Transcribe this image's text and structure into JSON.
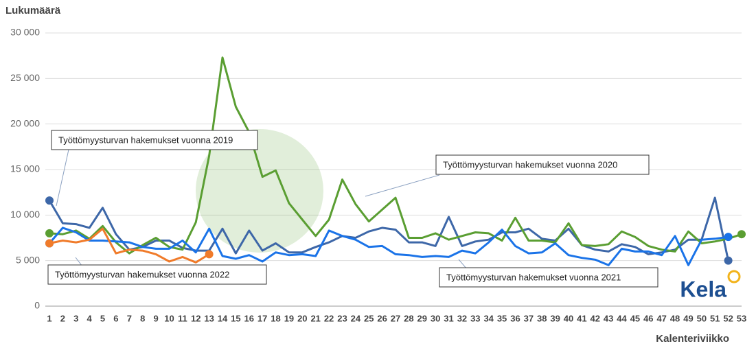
{
  "chart_data": {
    "type": "line",
    "y_label": "Lukumäärä",
    "x_label": "Kalenteriviikko",
    "x": [
      1,
      2,
      3,
      4,
      5,
      6,
      7,
      8,
      9,
      10,
      11,
      12,
      13,
      14,
      15,
      16,
      17,
      18,
      19,
      20,
      21,
      22,
      23,
      24,
      25,
      26,
      27,
      28,
      29,
      30,
      31,
      32,
      33,
      34,
      35,
      36,
      37,
      38,
      39,
      40,
      41,
      42,
      43,
      44,
      45,
      46,
      47,
      48,
      49,
      50,
      51,
      52,
      53
    ],
    "xlim": [
      1,
      53
    ],
    "ylim": [
      0,
      30000
    ],
    "yticks": [
      {
        "value": 0,
        "label": "0"
      },
      {
        "value": 5000,
        "label": "5 000"
      },
      {
        "value": 10000,
        "label": "10 000"
      },
      {
        "value": 15000,
        "label": "15 000"
      },
      {
        "value": 20000,
        "label": "20 000"
      },
      {
        "value": 25000,
        "label": "25 000"
      },
      {
        "value": 30000,
        "label": "30 000"
      }
    ],
    "grid": true,
    "series": [
      {
        "name": "Työttömyysturvan hakemukset vuonna 2019",
        "color": "#3d67a8",
        "values": [
          11600,
          9100,
          9000,
          8600,
          10800,
          7900,
          6200,
          6500,
          7200,
          7200,
          6400,
          6100,
          6100,
          8500,
          5800,
          8300,
          6100,
          6900,
          5900,
          5900,
          6500,
          7000,
          7700,
          7500,
          8200,
          8600,
          8400,
          7000,
          7000,
          6600,
          9800,
          6600,
          7100,
          7300,
          8100,
          8100,
          8500,
          7400,
          7200,
          8500,
          6700,
          6200,
          6000,
          6800,
          6500,
          5700,
          5900,
          6200,
          7300,
          7300,
          11900,
          5000,
          null
        ]
      },
      {
        "name": "Työttömyysturvan hakemukset vuonna 2020",
        "color": "#5a9e32",
        "values": [
          8000,
          7900,
          8300,
          7400,
          8800,
          7000,
          5800,
          6700,
          7500,
          6500,
          6200,
          9200,
          16500,
          27300,
          21900,
          19100,
          14200,
          14900,
          11300,
          9500,
          7700,
          9500,
          13900,
          11200,
          9300,
          10600,
          11900,
          7500,
          7500,
          8000,
          7300,
          7700,
          8100,
          8000,
          7200,
          9700,
          7200,
          7200,
          7000,
          9100,
          6700,
          6600,
          6800,
          8200,
          7600,
          6600,
          6200,
          6000,
          8200,
          6900,
          7100,
          7400,
          7900
        ]
      },
      {
        "name": "Työttömyysturvan hakemukset vuonna 2021",
        "color": "#1a73e8",
        "values": [
          6900,
          8600,
          8100,
          7200,
          7200,
          7100,
          7000,
          6500,
          6300,
          6300,
          7200,
          5900,
          8500,
          5500,
          5200,
          5600,
          4900,
          5900,
          5600,
          5700,
          5500,
          8300,
          7700,
          7300,
          6500,
          6600,
          5700,
          5600,
          5400,
          5500,
          5400,
          6100,
          5800,
          7000,
          8400,
          6600,
          5800,
          5900,
          6900,
          5600,
          5300,
          5100,
          4500,
          6300,
          6000,
          6000,
          5600,
          7700,
          4500,
          7300,
          7400,
          7600,
          null
        ]
      },
      {
        "name": "Työttömyysturvan hakemukset vuonna 2022",
        "color": "#f07b2a",
        "values": [
          6900,
          7200,
          7000,
          7300,
          8500,
          5800,
          6200,
          6100,
          5700,
          4900,
          5400,
          4800,
          5700,
          null,
          null,
          null,
          null,
          null,
          null,
          null,
          null,
          null,
          null,
          null,
          null,
          null,
          null,
          null,
          null,
          null,
          null,
          null,
          null,
          null,
          null,
          null,
          null,
          null,
          null,
          null,
          null,
          null,
          null,
          null,
          null,
          null,
          null,
          null,
          null,
          null,
          null,
          null,
          null
        ]
      }
    ],
    "logo": "Kela"
  }
}
